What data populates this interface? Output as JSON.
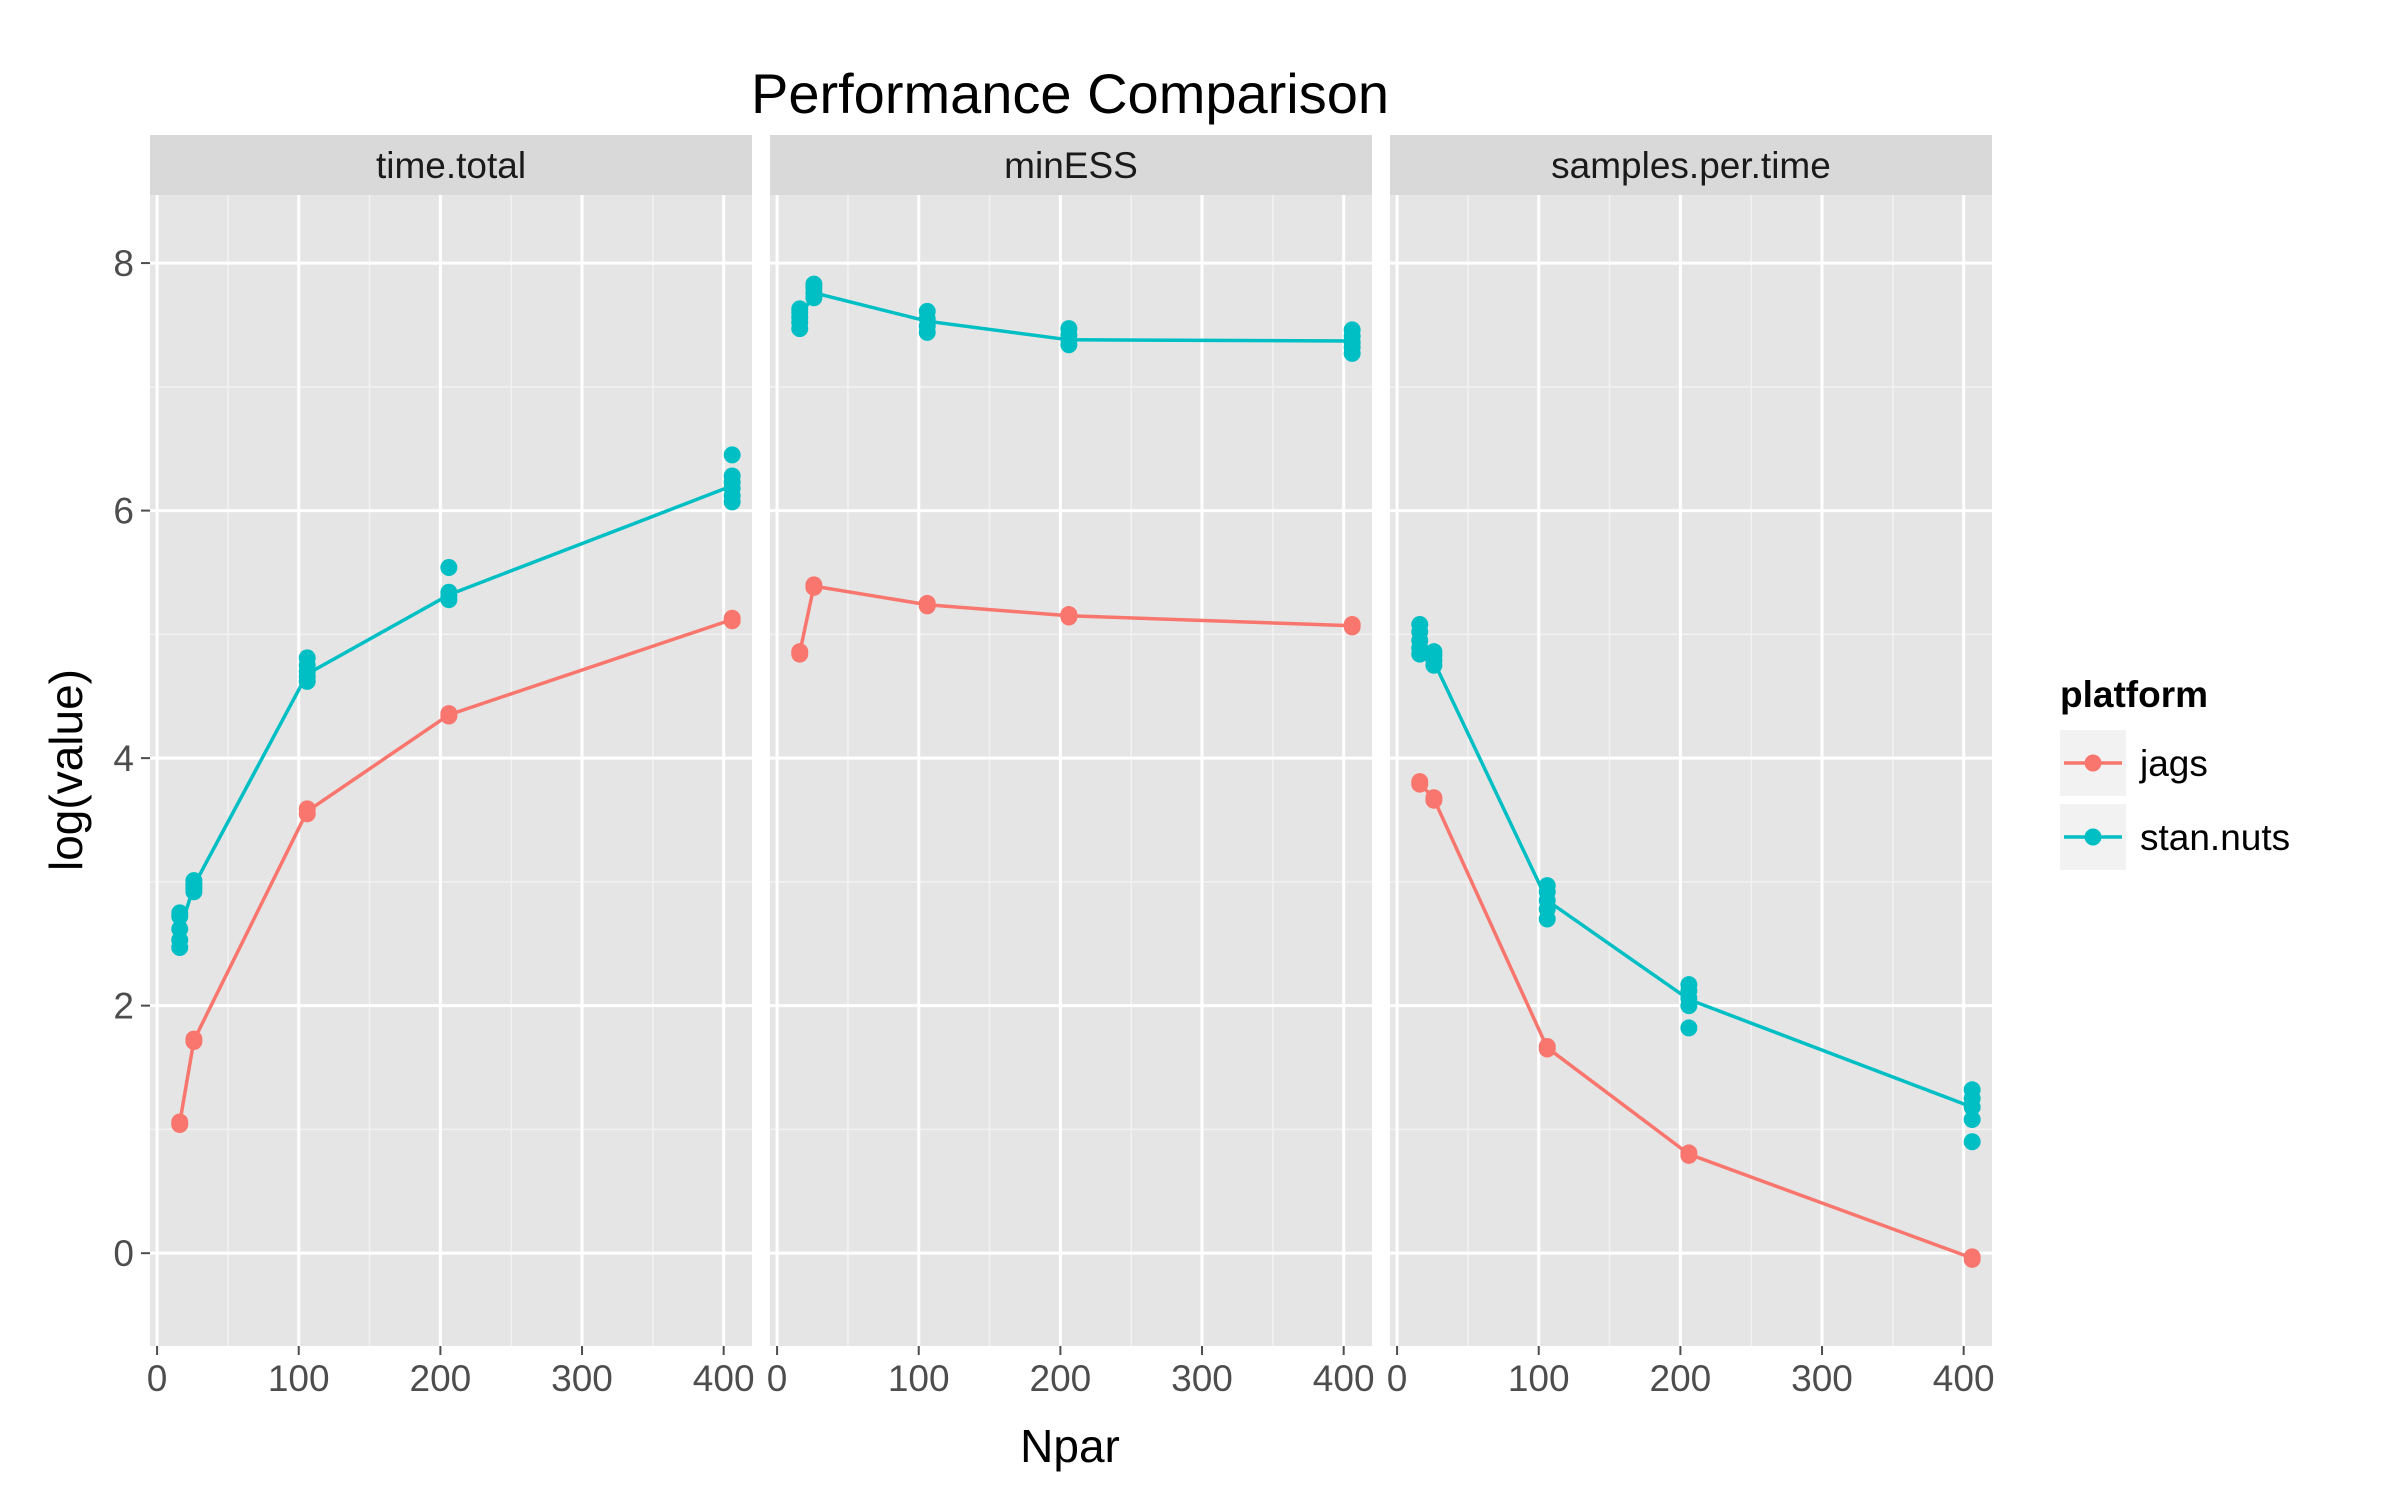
{
  "chart_data": {
    "type": "line",
    "title": "Performance Comparison",
    "xlabel": "Npar",
    "ylabel": "log(value)",
    "xlim": [
      -5,
      420
    ],
    "ylim": [
      -0.75,
      8.55
    ],
    "x_ticks": [
      0,
      100,
      200,
      300,
      400
    ],
    "y_ticks": [
      0,
      2,
      4,
      6,
      8
    ],
    "grid": true,
    "legend": {
      "title": "platform",
      "position": "right",
      "entries": [
        {
          "name": "jags",
          "color": "#F8766D"
        },
        {
          "name": "stan.nuts",
          "color": "#00BFC4"
        }
      ]
    },
    "facets": [
      {
        "label": "time.total",
        "series": [
          {
            "name": "jags",
            "color": "#F8766D",
            "line": [
              [
                16,
                1.05
              ],
              [
                26,
                1.72
              ],
              [
                106,
                3.57
              ],
              [
                206,
                4.35
              ],
              [
                406,
                5.12
              ]
            ],
            "points": [
              [
                16,
                1.04
              ],
              [
                16,
                1.06
              ],
              [
                26,
                1.71
              ],
              [
                26,
                1.73
              ],
              [
                106,
                3.55
              ],
              [
                106,
                3.59
              ],
              [
                206,
                4.34
              ],
              [
                206,
                4.36
              ],
              [
                406,
                5.11
              ],
              [
                406,
                5.13
              ]
            ]
          },
          {
            "name": "stan.nuts",
            "color": "#00BFC4",
            "line": [
              [
                16,
                2.6
              ],
              [
                26,
                2.97
              ],
              [
                106,
                4.68
              ],
              [
                206,
                5.32
              ],
              [
                406,
                6.2
              ]
            ],
            "points": [
              [
                16,
                2.47
              ],
              [
                16,
                2.53
              ],
              [
                16,
                2.62
              ],
              [
                16,
                2.72
              ],
              [
                16,
                2.75
              ],
              [
                26,
                2.92
              ],
              [
                26,
                2.95
              ],
              [
                26,
                2.98
              ],
              [
                26,
                3.01
              ],
              [
                106,
                4.62
              ],
              [
                106,
                4.66
              ],
              [
                106,
                4.7
              ],
              [
                106,
                4.75
              ],
              [
                106,
                4.81
              ],
              [
                206,
                5.28
              ],
              [
                206,
                5.31
              ],
              [
                206,
                5.34
              ],
              [
                206,
                5.54
              ],
              [
                406,
                6.07
              ],
              [
                406,
                6.12
              ],
              [
                406,
                6.18
              ],
              [
                406,
                6.23
              ],
              [
                406,
                6.28
              ],
              [
                406,
                6.45
              ]
            ]
          }
        ]
      },
      {
        "label": "minESS",
        "series": [
          {
            "name": "jags",
            "color": "#F8766D",
            "line": [
              [
                16,
                4.85
              ],
              [
                26,
                5.39
              ],
              [
                106,
                5.24
              ],
              [
                206,
                5.15
              ],
              [
                406,
                5.07
              ]
            ],
            "points": [
              [
                16,
                4.84
              ],
              [
                16,
                4.86
              ],
              [
                26,
                5.38
              ],
              [
                26,
                5.4
              ],
              [
                106,
                5.23
              ],
              [
                106,
                5.25
              ],
              [
                206,
                5.14
              ],
              [
                206,
                5.16
              ],
              [
                406,
                5.06
              ],
              [
                406,
                5.08
              ]
            ]
          },
          {
            "name": "stan.nuts",
            "color": "#00BFC4",
            "line": [
              [
                16,
                7.55
              ],
              [
                26,
                7.76
              ],
              [
                106,
                7.53
              ],
              [
                206,
                7.38
              ],
              [
                406,
                7.37
              ]
            ],
            "points": [
              [
                16,
                7.47
              ],
              [
                16,
                7.52
              ],
              [
                16,
                7.56
              ],
              [
                16,
                7.6
              ],
              [
                16,
                7.63
              ],
              [
                26,
                7.72
              ],
              [
                26,
                7.76
              ],
              [
                26,
                7.8
              ],
              [
                26,
                7.83
              ],
              [
                106,
                7.44
              ],
              [
                106,
                7.49
              ],
              [
                106,
                7.55
              ],
              [
                106,
                7.61
              ],
              [
                206,
                7.34
              ],
              [
                206,
                7.38
              ],
              [
                206,
                7.42
              ],
              [
                206,
                7.47
              ],
              [
                406,
                7.27
              ],
              [
                406,
                7.32
              ],
              [
                406,
                7.36
              ],
              [
                406,
                7.41
              ],
              [
                406,
                7.46
              ]
            ]
          }
        ]
      },
      {
        "label": "samples.per.time",
        "series": [
          {
            "name": "jags",
            "color": "#F8766D",
            "line": [
              [
                16,
                3.8
              ],
              [
                26,
                3.67
              ],
              [
                106,
                1.66
              ],
              [
                206,
                0.8
              ],
              [
                406,
                -0.04
              ]
            ],
            "points": [
              [
                16,
                3.79
              ],
              [
                16,
                3.81
              ],
              [
                26,
                3.66
              ],
              [
                26,
                3.68
              ],
              [
                106,
                1.65
              ],
              [
                106,
                1.67
              ],
              [
                206,
                0.79
              ],
              [
                206,
                0.81
              ],
              [
                406,
                -0.05
              ],
              [
                406,
                -0.03
              ]
            ]
          },
          {
            "name": "stan.nuts",
            "color": "#00BFC4",
            "line": [
              [
                16,
                4.95
              ],
              [
                26,
                4.78
              ],
              [
                106,
                2.85
              ],
              [
                206,
                2.05
              ],
              [
                406,
                1.18
              ]
            ],
            "points": [
              [
                16,
                4.84
              ],
              [
                16,
                4.89
              ],
              [
                16,
                4.95
              ],
              [
                16,
                5.02
              ],
              [
                16,
                5.08
              ],
              [
                26,
                4.75
              ],
              [
                26,
                4.79
              ],
              [
                26,
                4.83
              ],
              [
                26,
                4.86
              ],
              [
                106,
                2.7
              ],
              [
                106,
                2.78
              ],
              [
                106,
                2.85
              ],
              [
                106,
                2.92
              ],
              [
                106,
                2.97
              ],
              [
                206,
                1.82
              ],
              [
                206,
                2.0
              ],
              [
                206,
                2.06
              ],
              [
                206,
                2.12
              ],
              [
                206,
                2.17
              ],
              [
                406,
                0.9
              ],
              [
                406,
                1.08
              ],
              [
                406,
                1.18
              ],
              [
                406,
                1.25
              ],
              [
                406,
                1.32
              ]
            ]
          }
        ]
      }
    ]
  }
}
